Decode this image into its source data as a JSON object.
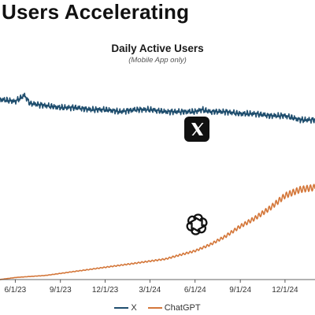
{
  "headline": "Users Accelerating",
  "chart_data": {
    "type": "line",
    "title": "Daily Active Users",
    "subtitle": "(Mobile App only)",
    "xlabel": "",
    "ylabel": "",
    "x_tick_labels": [
      "6/1/23",
      "9/1/23",
      "12/1/23",
      "3/1/24",
      "6/1/24",
      "9/1/24",
      "12/1/24"
    ],
    "x_start": "2023-05-01",
    "x_end": "2025-01-31",
    "y_axis_shown": false,
    "grid": false,
    "legend_position": "bottom",
    "series": [
      {
        "name": "X",
        "color": "#1f4e6e",
        "icon": "x-logo-icon",
        "points": [
          [
            "2023-05-01",
            0.88
          ],
          [
            "2023-06-01",
            0.87
          ],
          [
            "2023-06-20",
            0.9
          ],
          [
            "2023-07-01",
            0.86
          ],
          [
            "2023-08-01",
            0.85
          ],
          [
            "2023-09-01",
            0.84
          ],
          [
            "2023-10-01",
            0.84
          ],
          [
            "2023-11-01",
            0.83
          ],
          [
            "2023-12-01",
            0.83
          ],
          [
            "2024-01-01",
            0.82
          ],
          [
            "2024-02-01",
            0.83
          ],
          [
            "2024-03-01",
            0.83
          ],
          [
            "2024-04-01",
            0.82
          ],
          [
            "2024-05-01",
            0.82
          ],
          [
            "2024-06-01",
            0.82
          ],
          [
            "2024-06-15",
            0.83
          ],
          [
            "2024-07-01",
            0.82
          ],
          [
            "2024-08-01",
            0.82
          ],
          [
            "2024-09-01",
            0.81
          ],
          [
            "2024-10-01",
            0.81
          ],
          [
            "2024-11-01",
            0.8
          ],
          [
            "2024-12-01",
            0.8
          ],
          [
            "2025-01-01",
            0.78
          ],
          [
            "2025-01-31",
            0.78
          ]
        ]
      },
      {
        "name": "ChatGPT",
        "color": "#d4773a",
        "icon": "openai-logo-icon",
        "points": [
          [
            "2023-05-01",
            0.0
          ],
          [
            "2023-06-01",
            0.01
          ],
          [
            "2023-07-01",
            0.015
          ],
          [
            "2023-08-01",
            0.02
          ],
          [
            "2023-09-01",
            0.03
          ],
          [
            "2023-10-01",
            0.04
          ],
          [
            "2023-11-01",
            0.05
          ],
          [
            "2023-12-01",
            0.06
          ],
          [
            "2024-01-01",
            0.07
          ],
          [
            "2024-02-01",
            0.08
          ],
          [
            "2024-03-01",
            0.09
          ],
          [
            "2024-04-01",
            0.1
          ],
          [
            "2024-05-01",
            0.12
          ],
          [
            "2024-06-01",
            0.14
          ],
          [
            "2024-07-01",
            0.17
          ],
          [
            "2024-08-01",
            0.21
          ],
          [
            "2024-09-01",
            0.26
          ],
          [
            "2024-10-01",
            0.3
          ],
          [
            "2024-11-01",
            0.35
          ],
          [
            "2024-12-01",
            0.41
          ],
          [
            "2025-01-01",
            0.44
          ],
          [
            "2025-01-31",
            0.45
          ]
        ]
      }
    ]
  }
}
